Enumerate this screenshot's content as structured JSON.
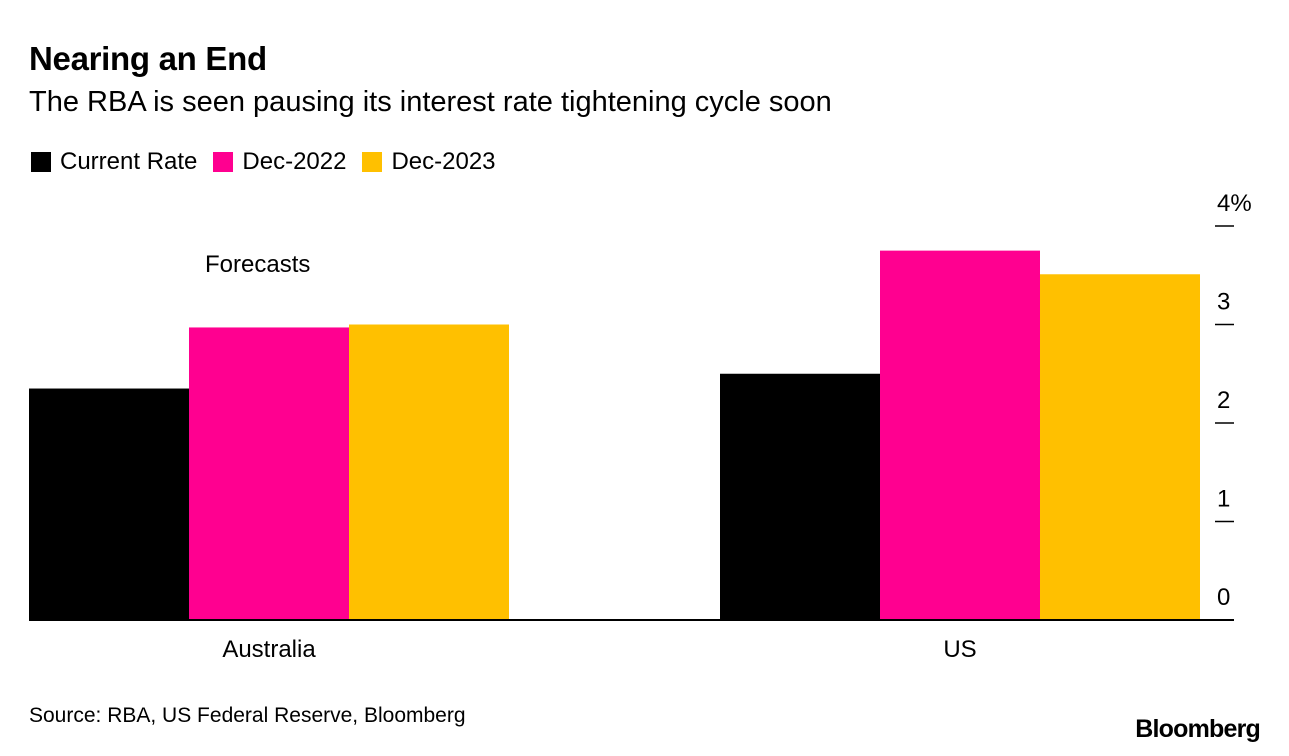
{
  "title": "Nearing an End",
  "subtitle": "The RBA is seen pausing its interest rate tightening cycle soon",
  "legend": [
    {
      "label": "Current Rate",
      "color": "#000000"
    },
    {
      "label": "Dec-2022",
      "color": "#ff0090"
    },
    {
      "label": "Dec-2023",
      "color": "#ffc000"
    }
  ],
  "annotation": "Forecasts",
  "source": "Source: RBA, US Federal Reserve, Bloomberg",
  "logo": "Bloomberg",
  "chart_data": {
    "type": "bar",
    "title": "Nearing an End",
    "subtitle": "The RBA is seen pausing its interest rate tightening cycle soon",
    "categories": [
      "Australia",
      "US"
    ],
    "series": [
      {
        "name": "Current Rate",
        "color": "#000000",
        "values": [
          2.35,
          2.5
        ]
      },
      {
        "name": "Dec-2022",
        "color": "#ff0090",
        "values": [
          2.97,
          3.75
        ]
      },
      {
        "name": "Dec-2023",
        "color": "#ffc000",
        "values": [
          3.0,
          3.51
        ]
      }
    ],
    "ylim": [
      0,
      4
    ],
    "yticks": [
      0,
      1,
      2,
      3,
      4
    ],
    "ytick_labels": [
      "0",
      "1",
      "2",
      "3",
      "4%"
    ],
    "y_axis_side": "right",
    "annotations": [
      "Forecasts"
    ],
    "xlabel": "",
    "ylabel": ""
  }
}
